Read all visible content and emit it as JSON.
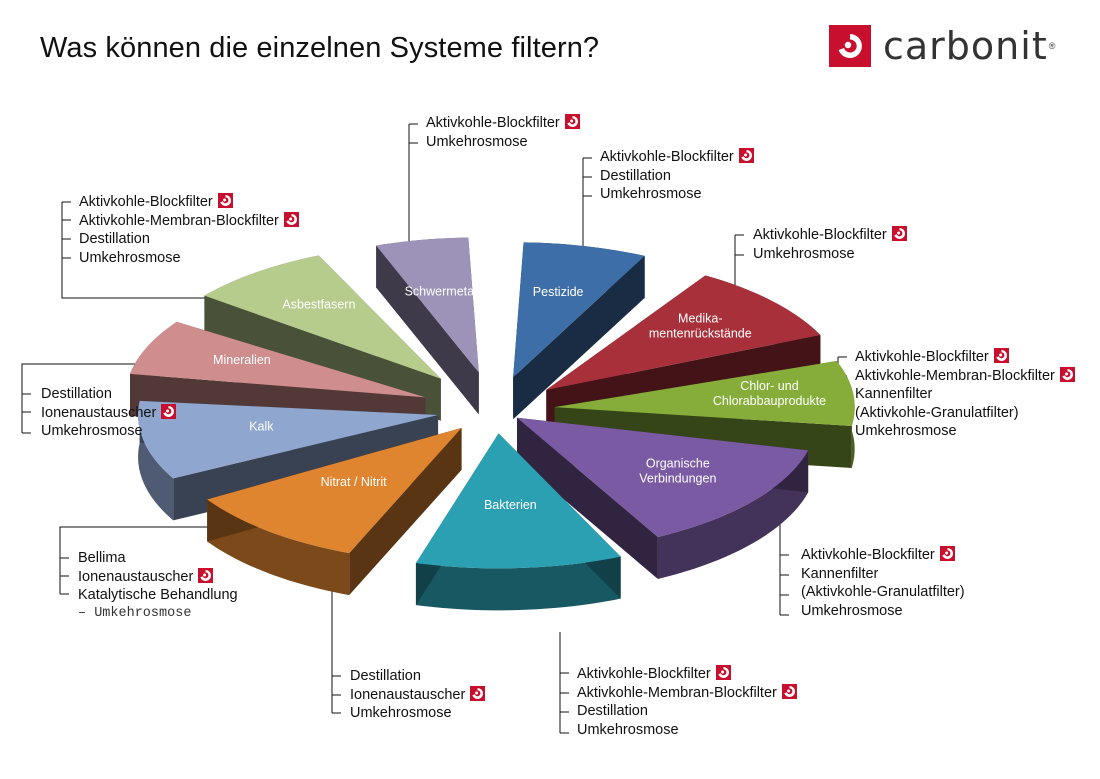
{
  "page": {
    "title": "Was können die einzelnen Systeme filtern?",
    "logo_text": "carbonit",
    "logo_reg": "®"
  },
  "segments": [
    {
      "id": "schwermetalle",
      "label": "Schwermetalle",
      "color": "#9d92b8"
    },
    {
      "id": "pestizide",
      "label": "Pestizide",
      "color": "#3e6ea8"
    },
    {
      "id": "medikamente",
      "label": "Medika-\nmentenrückstände",
      "color": "#a8303a"
    },
    {
      "id": "chlor",
      "label": "Chlor- und\nChlorabbauprodukte",
      "color": "#86ad3a"
    },
    {
      "id": "organisch",
      "label": "Organische\nVerbindungen",
      "color": "#7a5aa3"
    },
    {
      "id": "bakterien",
      "label": "Bakterien",
      "color": "#2ba0b3"
    },
    {
      "id": "nitrat",
      "label": "Nitrat / Nitrit",
      "color": "#e0852f"
    },
    {
      "id": "kalk",
      "label": "Kalk",
      "color": "#8fa6cf"
    },
    {
      "id": "mineralien",
      "label": "Mineralien",
      "color": "#cf8d8d"
    },
    {
      "id": "asbest",
      "label": "Asbestfasern",
      "color": "#b6cc8c"
    }
  ],
  "callouts": {
    "schwermetalle": [
      {
        "text": "Aktivkohle-Blockfilter",
        "badge": true
      },
      {
        "text": "Umkehrosmose",
        "badge": false
      }
    ],
    "pestizide": [
      {
        "text": "Aktivkohle-Blockfilter",
        "badge": true
      },
      {
        "text": "Destillation",
        "badge": false
      },
      {
        "text": "Umkehrosmose",
        "badge": false
      }
    ],
    "medikamente": [
      {
        "text": "Aktivkohle-Blockfilter",
        "badge": true
      },
      {
        "text": "Umkehrosmose",
        "badge": false
      }
    ],
    "chlor": [
      {
        "text": "Aktivkohle-Blockfilter",
        "badge": true
      },
      {
        "text": "Aktivkohle-Membran-Blockfilter",
        "badge": true
      },
      {
        "text": "Kannenfilter",
        "badge": false
      },
      {
        "text": "(Aktivkohle-Granulatfilter)",
        "badge": false
      },
      {
        "text": "Umkehrosmose",
        "badge": false
      }
    ],
    "organisch": [
      {
        "text": "Aktivkohle-Blockfilter",
        "badge": true
      },
      {
        "text": "Kannenfilter",
        "badge": false
      },
      {
        "text": "(Aktivkohle-Granulatfilter)",
        "badge": false
      },
      {
        "text": "Umkehrosmose",
        "badge": false
      }
    ],
    "bakterien": [
      {
        "text": "Aktivkohle-Blockfilter",
        "badge": true
      },
      {
        "text": "Aktivkohle-Membran-Blockfilter",
        "badge": true
      },
      {
        "text": "Destillation",
        "badge": false
      },
      {
        "text": "Umkehrosmose",
        "badge": false
      }
    ],
    "nitrat": [
      {
        "text": "Destillation",
        "badge": false
      },
      {
        "text": "Ionenaustauscher",
        "badge": true
      },
      {
        "text": "Umkehrosmose",
        "badge": false
      }
    ],
    "kalk": [
      {
        "text": "Bellima",
        "badge": false
      },
      {
        "text": "Ionenaustauscher",
        "badge": true
      },
      {
        "text": "Katalytische Behandlung",
        "badge": false
      },
      {
        "text": "– Umkehrosmose",
        "badge": false,
        "mono": true
      }
    ],
    "mineralien": [
      {
        "text": "Destillation",
        "badge": false
      },
      {
        "text": "Ionenaustauscher",
        "badge": true
      },
      {
        "text": "Umkehrosmose",
        "badge": false
      }
    ],
    "asbest": [
      {
        "text": "Aktivkohle-Blockfilter",
        "badge": true
      },
      {
        "text": "Aktivkohle-Membran-Blockfilter",
        "badge": true
      },
      {
        "text": "Destillation",
        "badge": false
      },
      {
        "text": "Umkehrosmose",
        "badge": false
      }
    ]
  }
}
